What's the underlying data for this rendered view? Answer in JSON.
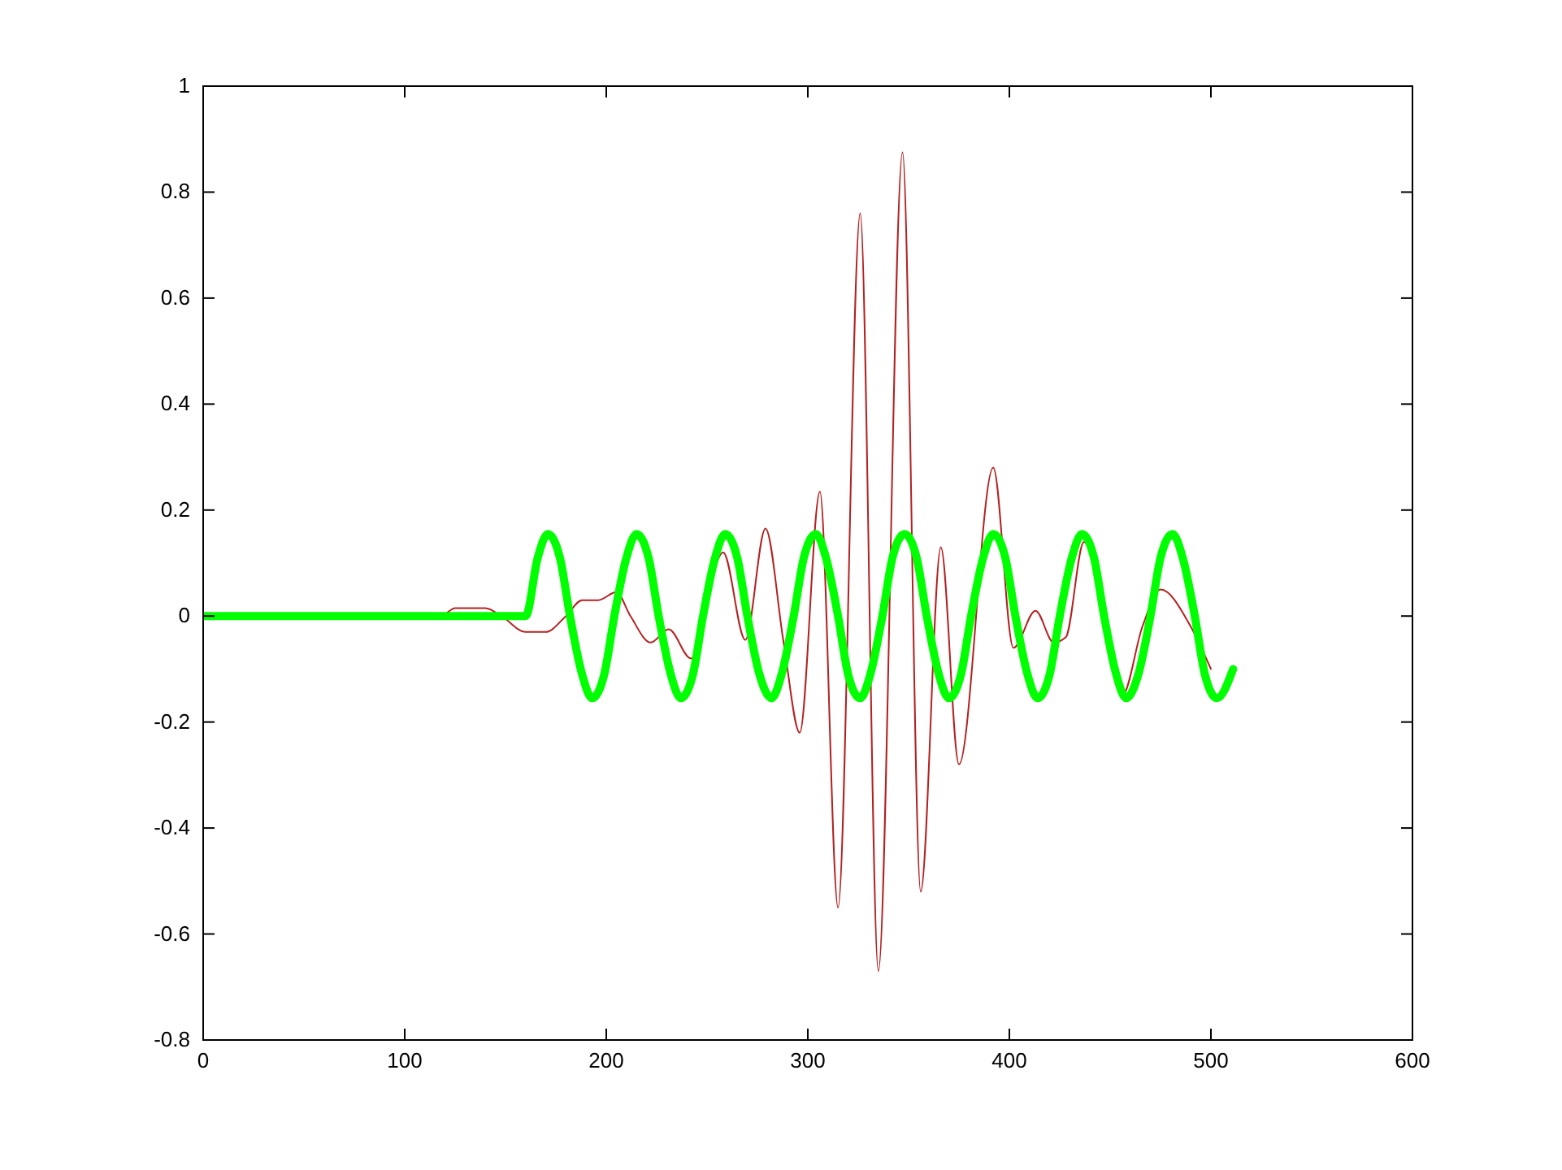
{
  "chart_data": {
    "type": "line",
    "xlim": [
      0,
      600
    ],
    "ylim": [
      -0.8,
      1
    ],
    "xticks": [
      0,
      100,
      200,
      300,
      400,
      500,
      600
    ],
    "yticks": [
      -0.8,
      -0.6,
      -0.4,
      -0.2,
      0,
      0.2,
      0.4,
      0.6,
      0.8,
      1
    ],
    "series": [
      {
        "color": "#b22222",
        "x": [
          0,
          118,
          125,
          140,
          148,
          160,
          170,
          180,
          188,
          196,
          205,
          212,
          222,
          231,
          242,
          258,
          269,
          279,
          288,
          296,
          306,
          315,
          326,
          335,
          347,
          356,
          366,
          375,
          392,
          402,
          413,
          422,
          428,
          437,
          456,
          466,
          475,
          490,
          500
        ],
        "values": [
          0,
          0,
          0.015,
          0.015,
          0,
          -0.03,
          -0.03,
          0,
          0.03,
          0.03,
          0.045,
          0,
          -0.05,
          -0.025,
          -0.08,
          0.12,
          -0.045,
          0.165,
          -0.05,
          -0.22,
          0.235,
          -0.55,
          0.76,
          -0.67,
          0.875,
          -0.52,
          0.13,
          -0.28,
          0.28,
          -0.06,
          0.01,
          -0.05,
          -0.04,
          0.14,
          -0.15,
          -0.02,
          0.05,
          -0.02,
          -0.1
        ]
      },
      {
        "color": "#00ff00",
        "x": [
          0,
          160,
          166,
          171,
          177,
          182,
          188,
          193,
          199,
          204,
          210,
          215,
          221,
          226,
          232,
          237,
          243,
          248,
          254,
          259,
          265,
          270,
          276,
          282,
          287,
          293,
          298,
          304,
          309,
          315,
          320,
          326,
          331,
          337,
          342,
          348,
          354,
          359,
          365,
          370,
          376,
          381,
          387,
          392,
          398,
          403,
          409,
          414,
          420,
          425,
          431,
          436,
          442,
          447,
          453,
          458,
          464,
          470,
          475,
          481,
          486,
          492,
          497,
          503,
          511
        ],
        "values": [
          0,
          0,
          0.11,
          0.155,
          0.11,
          0,
          -0.11,
          -0.155,
          -0.11,
          0,
          0.11,
          0.155,
          0.11,
          0,
          -0.11,
          -0.155,
          -0.11,
          0,
          0.11,
          0.155,
          0.11,
          0,
          -0.11,
          -0.155,
          -0.11,
          0,
          0.11,
          0.155,
          0.11,
          0,
          -0.11,
          -0.155,
          -0.11,
          0,
          0.11,
          0.155,
          0.11,
          0,
          -0.11,
          -0.155,
          -0.11,
          0,
          0.11,
          0.155,
          0.11,
          0,
          -0.11,
          -0.155,
          -0.11,
          0,
          0.11,
          0.155,
          0.11,
          0,
          -0.11,
          -0.155,
          -0.11,
          0,
          0.11,
          0.155,
          0.11,
          0,
          -0.11,
          -0.155,
          -0.1
        ]
      }
    ]
  }
}
